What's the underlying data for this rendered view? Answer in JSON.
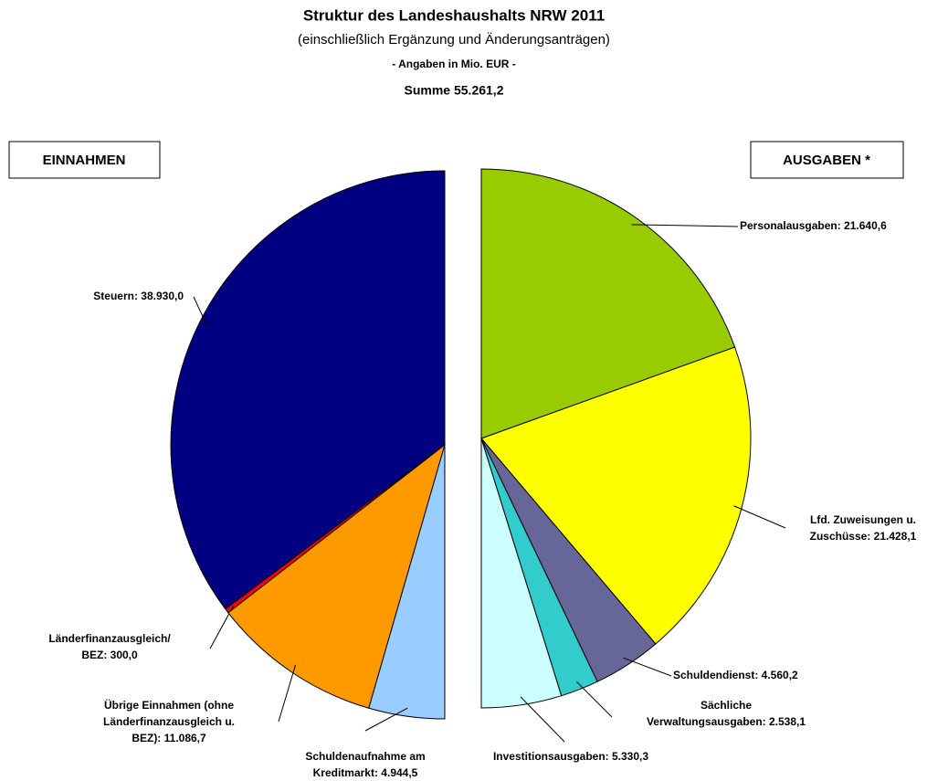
{
  "header": {
    "title": "Struktur des Landeshaushalts NRW 2011",
    "subtitle": "(einschließlich Ergänzung und Änderungsanträgen)",
    "unit": "- Angaben in Mio. EUR -",
    "total": "Summe 55.261,2"
  },
  "chart_data": [
    {
      "type": "pie",
      "title": "EINNAHMEN",
      "direction": "counterclockwise",
      "values": [
        38930.0,
        300.0,
        11086.7,
        4944.5
      ],
      "value_labels": [
        [
          "Steuern: 38.930,0"
        ],
        [
          "Länderfinanzausgleich/",
          "BEZ: 300,0"
        ],
        [
          "Übrige Einnahmen (ohne",
          "Länderfinanzausgleich u.",
          "BEZ): 11.086,7"
        ],
        [
          "Schuldenaufnahme am",
          "Kreditmarkt: 4.944,5"
        ]
      ],
      "colors": [
        "#000080",
        "#ff0000",
        "#ff9900",
        "#99ccff"
      ]
    },
    {
      "type": "pie",
      "title": "AUSGABEN *",
      "direction": "clockwise",
      "values": [
        21640.6,
        21428.1,
        4560.2,
        2538.1,
        5330.3
      ],
      "value_labels": [
        [
          "Personalausgaben: 21.640,6"
        ],
        [
          "Lfd. Zuweisungen u.",
          "Zuschüsse: 21.428,1"
        ],
        [
          "Schuldendienst: 4.560,2"
        ],
        [
          "Sächliche",
          "Verwaltungsausgaben: 2.538,1"
        ],
        [
          "Investitionsausgaben: 5.330,3"
        ]
      ],
      "colors": [
        "#99cc00",
        "#ffff00",
        "#666699",
        "#33cccc",
        "#ccffff"
      ]
    }
  ]
}
